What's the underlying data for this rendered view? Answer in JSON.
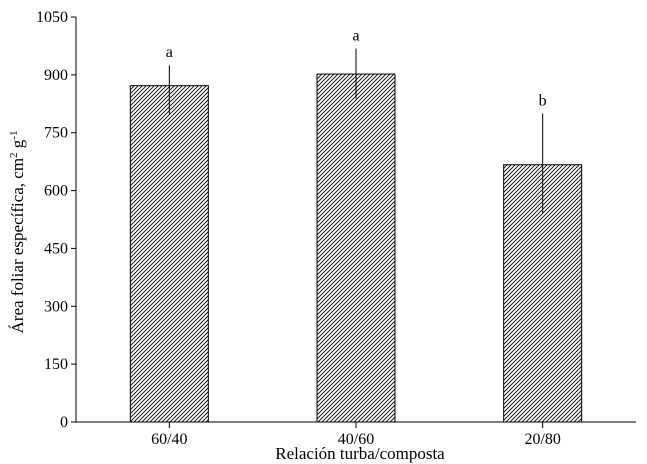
{
  "chart_data": {
    "type": "bar",
    "categories": [
      "60/40",
      "40/60",
      "20/80"
    ],
    "values": [
      872,
      902,
      667
    ],
    "error_low": [
      795,
      838,
      540
    ],
    "error_high": [
      925,
      968,
      800
    ],
    "significance": [
      "a",
      "a",
      "b"
    ],
    "xlabel": "Relación turba/composta",
    "ylabel_main": "Área foliar específica, cm",
    "ylabel_sup1": "2",
    "ylabel_mid": " g",
    "ylabel_sup2": "-1",
    "ylim": [
      0,
      1050
    ],
    "yticks": [
      0,
      150,
      300,
      450,
      600,
      750,
      900,
      1050
    ],
    "bar_fill": "hatched",
    "bar_color": "#000000",
    "grid": false,
    "legend": "none"
  }
}
